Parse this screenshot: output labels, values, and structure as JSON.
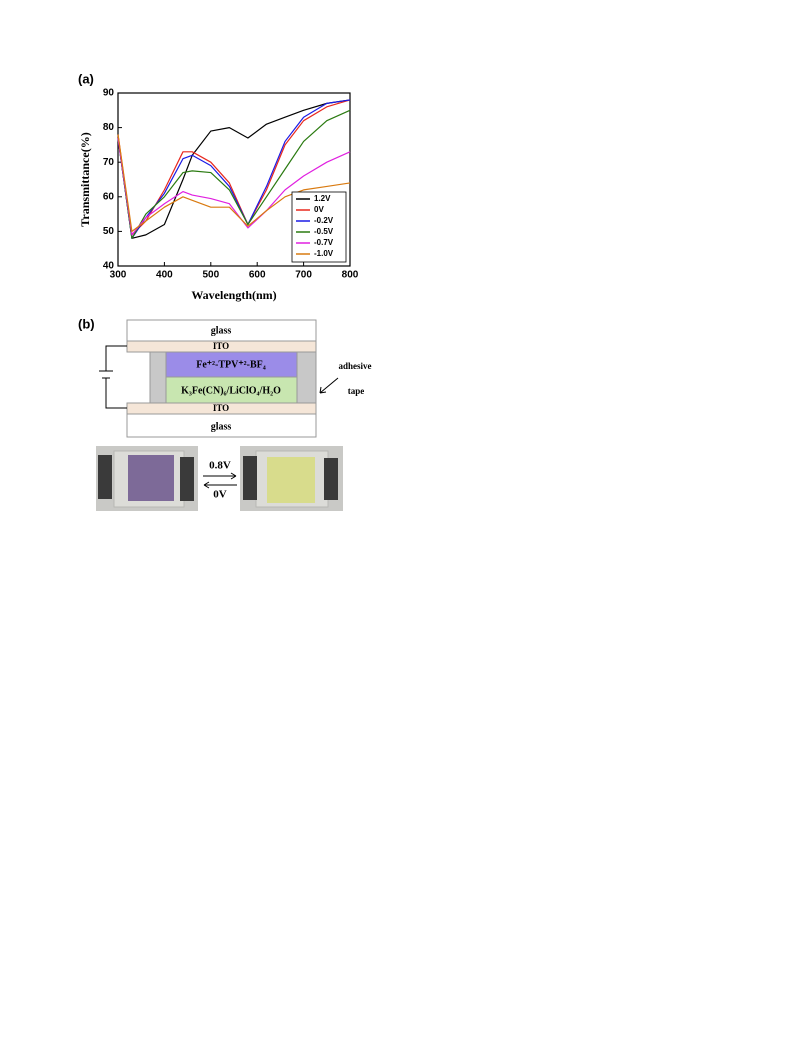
{
  "panel_a_label": "(a)",
  "chart_data": {
    "type": "line",
    "x_label": "Wavelength(nm)",
    "y_label": "Transmittance(%)",
    "x": [
      300,
      330,
      360,
      400,
      440,
      460,
      500,
      540,
      580,
      620,
      660,
      700,
      750,
      800
    ],
    "series": [
      {
        "name": "1.2V",
        "color": "#000000",
        "values": [
          77,
          48,
          49,
          52,
          65,
          72,
          79,
          80,
          77,
          81,
          83,
          85,
          87,
          88
        ]
      },
      {
        "name": "0V",
        "color": "#e8281e",
        "values": [
          78,
          49,
          53,
          62,
          73,
          73,
          70,
          64,
          52,
          62,
          75,
          82,
          86,
          88
        ]
      },
      {
        "name": "-0.2V",
        "color": "#1a1ae6",
        "values": [
          77,
          48,
          54,
          61,
          71,
          72,
          69,
          63,
          52,
          63,
          76,
          83,
          87,
          88
        ]
      },
      {
        "name": "-0.5V",
        "color": "#2a7a10",
        "values": [
          77,
          48,
          55,
          60,
          67,
          67.5,
          67,
          62,
          52,
          60,
          68,
          76,
          82,
          85
        ]
      },
      {
        "name": "-0.7V",
        "color": "#e020e0",
        "values": [
          77,
          49,
          54,
          58,
          61.5,
          60.5,
          59.5,
          58,
          51,
          56,
          62,
          66,
          70,
          73
        ]
      },
      {
        "name": "-1.0V",
        "color": "#d97a10",
        "values": [
          78,
          50,
          53,
          57,
          60,
          59,
          57,
          57,
          51.5,
          56,
          60,
          62,
          63,
          64
        ]
      }
    ],
    "xlim": [
      300,
      800
    ],
    "xticks": [
      300,
      400,
      500,
      600,
      700,
      800
    ],
    "ylim": [
      40,
      90
    ],
    "yticks": [
      40,
      50,
      60,
      70,
      80,
      90
    ],
    "legend": "lower-right"
  },
  "panel_b_label": "(b)",
  "diagram": {
    "glass_top": "glass",
    "ito_top": "ITO",
    "fe_layer": "Fe⁺²-TPV⁺²-BF₄",
    "k_layer": "K₃Fe(CN)₆/LiClO₄/H₂O",
    "ito_bottom": "ITO",
    "glass_bottom": "glass",
    "adhesive": "adhesive",
    "tape": "tape",
    "forward_voltage": "0.8V",
    "reverse_voltage": "0V"
  }
}
